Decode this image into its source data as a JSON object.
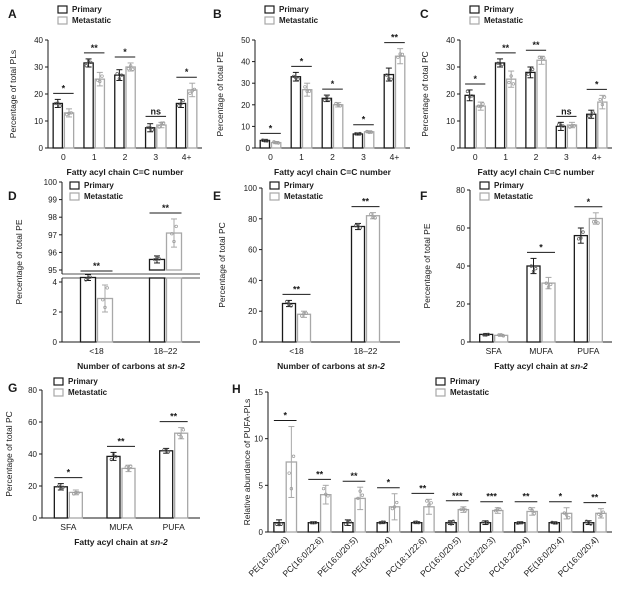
{
  "legend": {
    "primary": "Primary",
    "metastatic": "Metastatic"
  },
  "colors": {
    "primary_edge": "#1a1a1a",
    "metastatic_edge": "#a8a8a8",
    "point_primary": "#555555",
    "point_metastatic": "#9a9a9a"
  },
  "chart_data": [
    {
      "label": "A",
      "type": "bar",
      "ylabel": "Percentage of total PLs",
      "xlabel": "Fatty acyl chain C=C number",
      "categories": [
        "0",
        "1",
        "2",
        "3",
        "4+"
      ],
      "ylim": [
        0,
        40
      ],
      "yticks": [
        0,
        10,
        20,
        30,
        40
      ],
      "series": [
        {
          "name": "Primary",
          "values": [
            16.5,
            31.5,
            27,
            7.5,
            16.5
          ],
          "errors": [
            1.5,
            1.5,
            2,
            1.5,
            1.5
          ]
        },
        {
          "name": "Metastatic",
          "values": [
            13,
            25.5,
            30,
            8.5,
            21.5
          ],
          "errors": [
            1.5,
            2.5,
            1.5,
            1,
            2.5
          ]
        }
      ],
      "significance": [
        "*",
        "**",
        "*",
        "ns",
        "*"
      ]
    },
    {
      "label": "B",
      "type": "bar",
      "ylabel": "Percentage of total PE",
      "xlabel": "Fatty acyl chain C=C number",
      "categories": [
        "0",
        "1",
        "2",
        "3",
        "4+"
      ],
      "ylim": [
        0,
        50
      ],
      "yticks": [
        0,
        10,
        20,
        30,
        40,
        50
      ],
      "series": [
        {
          "name": "Primary",
          "values": [
            3.5,
            33,
            23,
            6.5,
            34
          ],
          "errors": [
            0.5,
            2,
            1.5,
            0.5,
            3
          ]
        },
        {
          "name": "Metastatic",
          "values": [
            2.5,
            27,
            20,
            7.5,
            42.5
          ],
          "errors": [
            0.5,
            3,
            1,
            0.5,
            3.5
          ]
        }
      ],
      "significance": [
        "*",
        "*",
        "*",
        "*",
        "**"
      ]
    },
    {
      "label": "C",
      "type": "bar",
      "ylabel": "Percentage of total PC",
      "xlabel": "Fatty acyl chain C=C number",
      "categories": [
        "0",
        "1",
        "2",
        "3",
        "4+"
      ],
      "ylim": [
        0,
        40
      ],
      "yticks": [
        0,
        10,
        20,
        30,
        40
      ],
      "series": [
        {
          "name": "Primary",
          "values": [
            19.5,
            31.5,
            28,
            8,
            12.5
          ],
          "errors": [
            2,
            1.5,
            2,
            1.5,
            1.5
          ]
        },
        {
          "name": "Metastatic",
          "values": [
            15.5,
            25.5,
            32.5,
            8.5,
            17
          ],
          "errors": [
            1.5,
            3,
            1.5,
            1,
            2.5
          ]
        }
      ],
      "significance": [
        "*",
        "**",
        "**",
        "ns",
        "*"
      ]
    },
    {
      "label": "D",
      "type": "bar",
      "ylabel": "Percentage of total PE",
      "xlabel": "Number of carbons at sn-2",
      "categories": [
        "<18",
        "18–22"
      ],
      "broken_axis": true,
      "ylim_lower": [
        0,
        4
      ],
      "yticks_lower": [
        0,
        2,
        4
      ],
      "ylim_upper": [
        95,
        100
      ],
      "yticks_upper": [
        95,
        96,
        97,
        98,
        99,
        100
      ],
      "series": [
        {
          "name": "Primary",
          "values": [
            4.3,
            95.6
          ],
          "errors": [
            0.2,
            0.2
          ]
        },
        {
          "name": "Metastatic",
          "values": [
            2.9,
            97.1
          ],
          "errors": [
            0.9,
            0.8
          ]
        }
      ],
      "significance": [
        "**",
        "**"
      ]
    },
    {
      "label": "E",
      "type": "bar",
      "ylabel": "Percentage of total PC",
      "xlabel": "Number of carbons at sn-2",
      "categories": [
        "<18",
        "18–22"
      ],
      "ylim": [
        0,
        100
      ],
      "yticks": [
        0,
        20,
        40,
        60,
        80,
        100
      ],
      "series": [
        {
          "name": "Primary",
          "values": [
            25,
            75
          ],
          "errors": [
            2,
            2
          ]
        },
        {
          "name": "Metastatic",
          "values": [
            18,
            82
          ],
          "errors": [
            2,
            2
          ]
        }
      ],
      "significance": [
        "**",
        "**"
      ]
    },
    {
      "label": "F",
      "type": "bar",
      "ylabel": "Percentage of total PE",
      "xlabel": "Fatty acyl chain at sn-2",
      "categories": [
        "SFA",
        "MUFA",
        "PUFA"
      ],
      "ylim": [
        0,
        80
      ],
      "yticks": [
        0,
        20,
        40,
        60,
        80
      ],
      "series": [
        {
          "name": "Primary",
          "values": [
            4,
            40,
            56
          ],
          "errors": [
            0.5,
            4,
            4
          ]
        },
        {
          "name": "Metastatic",
          "values": [
            3.5,
            31,
            65
          ],
          "errors": [
            0.5,
            3,
            3
          ]
        }
      ],
      "significance": [
        "",
        "*",
        "*"
      ]
    },
    {
      "label": "G",
      "type": "bar",
      "ylabel": "Percentage of total PC",
      "xlabel": "Fatty acyl chain at sn-2",
      "categories": [
        "SFA",
        "MUFA",
        "PUFA"
      ],
      "ylim": [
        0,
        80
      ],
      "yticks": [
        0,
        20,
        40,
        60,
        80
      ],
      "series": [
        {
          "name": "Primary",
          "values": [
            19.5,
            38.5,
            42
          ],
          "errors": [
            2,
            2.5,
            1.5
          ]
        },
        {
          "name": "Metastatic",
          "values": [
            16,
            31,
            53
          ],
          "errors": [
            1.5,
            2,
            3.5
          ]
        }
      ],
      "significance": [
        "*",
        "**",
        "**"
      ]
    },
    {
      "label": "H",
      "type": "bar",
      "ylabel": "Relative abundance of PUFA-PLs",
      "xlabel": "",
      "categories": [
        "PE(16:0/22:6)",
        "PC(16:0/22:6)",
        "PE(16:0/20:5)",
        "PE(16:0/20:4)",
        "PC(18:1/22:6)",
        "PC(16:0/20:5)",
        "PC(18:2/20:3)",
        "PC(18:2/20:4)",
        "PE(18:0/20:4)",
        "PC(16:0/20:4)"
      ],
      "ylim": [
        0,
        15
      ],
      "yticks": [
        0,
        5,
        10,
        15
      ],
      "series": [
        {
          "name": "Primary",
          "values": [
            1,
            1,
            1,
            1,
            1,
            1,
            1,
            1,
            1,
            1
          ],
          "errors": [
            0.3,
            0.1,
            0.3,
            0.1,
            0.1,
            0.2,
            0.2,
            0.1,
            0.1,
            0.2
          ]
        },
        {
          "name": "Metastatic",
          "values": [
            7.5,
            4,
            3.6,
            2.7,
            2.7,
            2.4,
            2.3,
            2.2,
            2,
            2
          ],
          "errors": [
            3.8,
            1,
            1.2,
            1.4,
            0.8,
            0.3,
            0.3,
            0.4,
            0.6,
            0.5
          ]
        }
      ],
      "significance": [
        "*",
        "**",
        "**",
        "*",
        "**",
        "***",
        "***",
        "**",
        "*",
        "**"
      ]
    }
  ]
}
